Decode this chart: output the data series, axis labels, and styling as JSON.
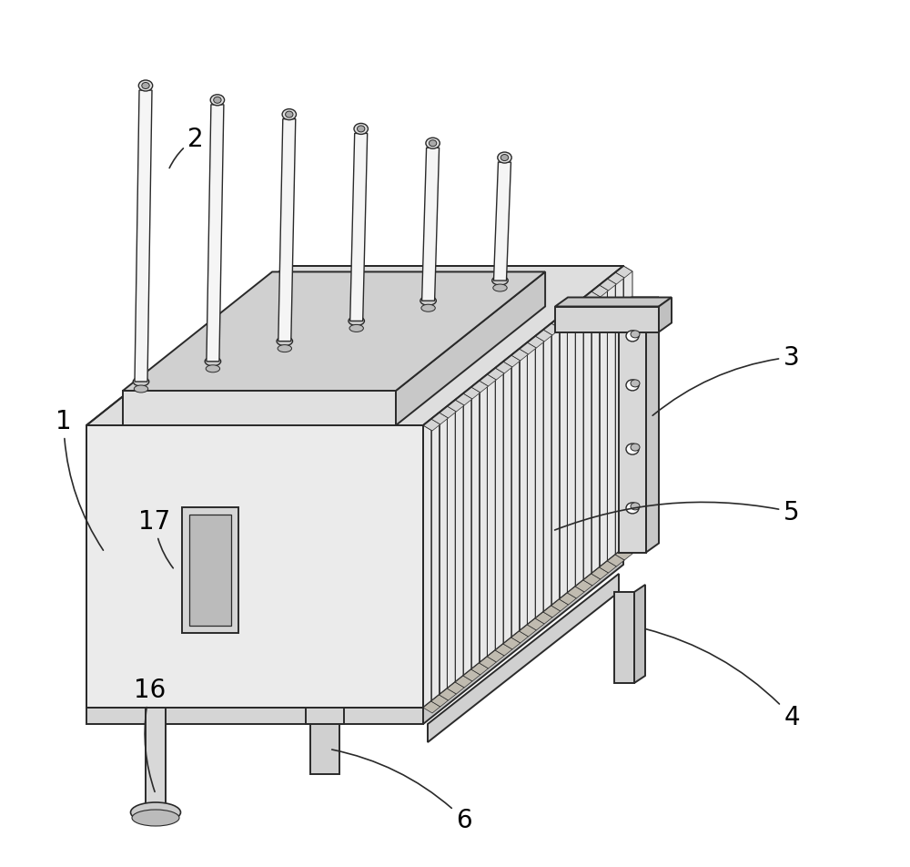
{
  "background_color": "#ffffff",
  "line_color": "#2a2a2a",
  "label_color": "#000000",
  "fig_width": 10.0,
  "fig_height": 9.53,
  "dpi": 100,
  "label_fontsize": 20
}
